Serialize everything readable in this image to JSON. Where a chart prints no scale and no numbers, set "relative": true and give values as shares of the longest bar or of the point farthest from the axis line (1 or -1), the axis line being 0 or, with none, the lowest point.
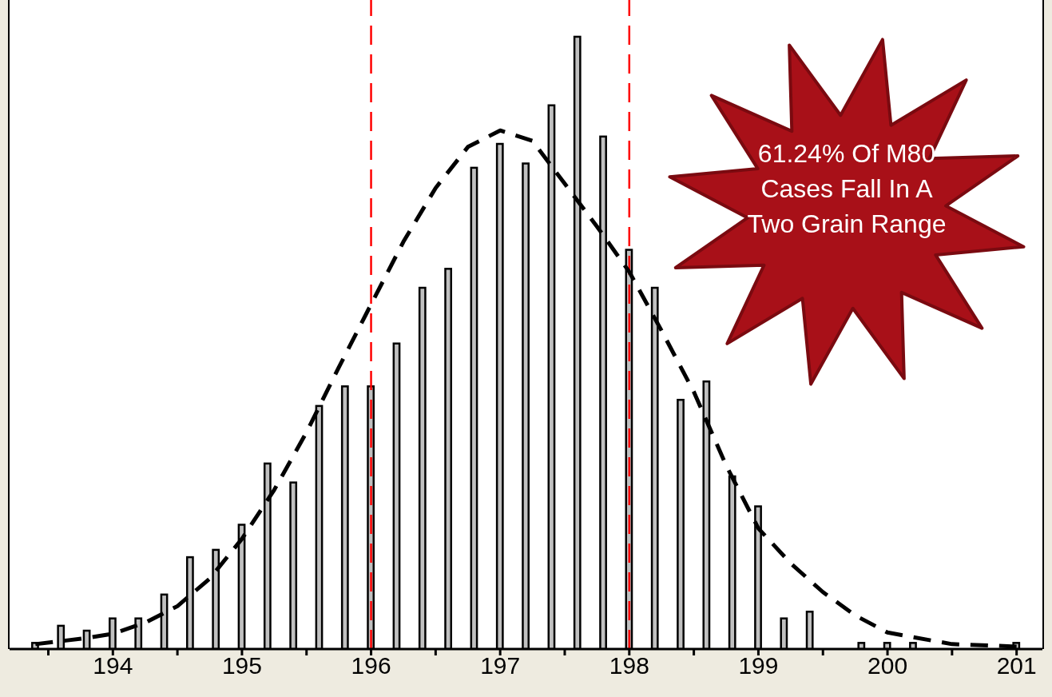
{
  "chart_data": {
    "type": "histogram",
    "relative": true,
    "color": "#c0c0c0",
    "bins": [
      193.3,
      193.5,
      193.7,
      193.9,
      194.1,
      194.3,
      194.5,
      194.7,
      194.9,
      195.1,
      195.3,
      195.5,
      195.7,
      195.9,
      196.1,
      196.3,
      196.5,
      196.7,
      196.9,
      197.1,
      197.3,
      197.5,
      197.7,
      197.9,
      198.1,
      198.3,
      198.5,
      198.7,
      198.9,
      199.1,
      199.3,
      199.5,
      199.7,
      199.9,
      200.1,
      200.3,
      200.5,
      200.7,
      200.9,
      201.1
    ],
    "values": [
      0.01,
      0.038,
      0.03,
      0.05,
      0.05,
      0.089,
      0.15,
      0.162,
      0.203,
      0.303,
      0.272,
      0.397,
      0.429,
      0.429,
      0.499,
      0.59,
      0.621,
      0.786,
      0.825,
      0.793,
      0.888,
      1,
      0.837,
      0.652,
      0.59,
      0.407,
      0.437,
      0.282,
      0.233,
      0.05,
      0.061,
      0,
      0.01,
      0.01,
      0.01,
      0,
      0,
      0,
      0.01
    ],
    "series": [
      {
        "type": "line",
        "color": "#000000",
        "line_style": "dashed",
        "x": [
          193.4,
          193.8,
          194,
          194.25,
          194.5,
          194.75,
          195,
          195.25,
          195.5,
          195.75,
          196,
          196.25,
          196.5,
          196.75,
          197,
          197.25,
          197.5,
          197.75,
          198,
          198.25,
          198.5,
          198.75,
          199,
          199.25,
          199.5,
          199.75,
          200,
          200.5,
          201
        ],
        "values": [
          0.008,
          0.018,
          0.025,
          0.043,
          0.07,
          0.115,
          0.18,
          0.26,
          0.354,
          0.46,
          0.563,
          0.665,
          0.753,
          0.82,
          0.847,
          0.83,
          0.76,
          0.69,
          0.616,
          0.52,
          0.42,
          0.3,
          0.197,
          0.14,
          0.093,
          0.055,
          0.027,
          0.008,
          0.004
        ]
      }
    ],
    "xlim": [
      193.2,
      201.2
    ],
    "xticks": [
      {
        "value": 193.5,
        "label": null
      },
      194,
      {
        "value": 194.5,
        "label": null
      },
      195,
      {
        "value": 195.5,
        "label": null
      },
      196,
      {
        "value": 196.5,
        "label": null
      },
      197,
      {
        "value": 197.5,
        "label": null
      },
      198,
      {
        "value": 198.5,
        "label": null
      },
      199,
      {
        "value": 199.5,
        "label": null
      },
      200,
      {
        "value": 200.5,
        "label": null
      },
      201
    ],
    "ref_lines": [
      {
        "axis": "x",
        "value": 196,
        "color": "#ff0000",
        "line_style": "dashed"
      },
      {
        "axis": "x",
        "value": 198,
        "color": "#ff0000",
        "line_style": "dashed"
      }
    ],
    "annotations": [
      "61.24% Of M80 Cases Fall In A Two Grain Range"
    ]
  }
}
